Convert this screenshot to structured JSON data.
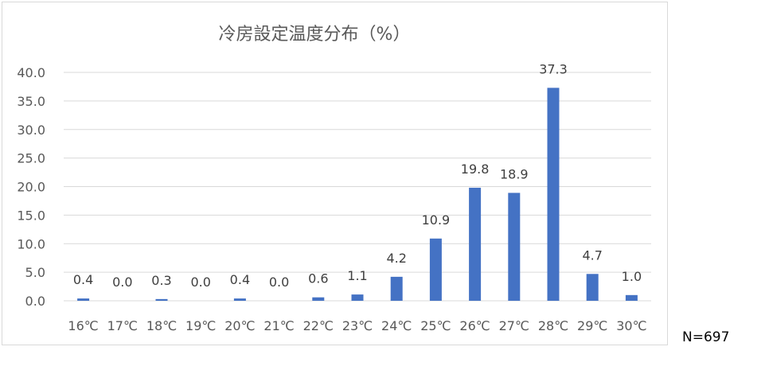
{
  "chart_data": {
    "type": "bar",
    "title": "冷房設定温度分布（%）",
    "xlabel": "",
    "ylabel": "",
    "categories": [
      "16℃",
      "17℃",
      "18℃",
      "19℃",
      "20℃",
      "21℃",
      "22℃",
      "23℃",
      "24℃",
      "25℃",
      "26℃",
      "27℃",
      "28℃",
      "29℃",
      "30℃"
    ],
    "values": [
      0.4,
      0.0,
      0.3,
      0.0,
      0.4,
      0.0,
      0.6,
      1.1,
      4.2,
      10.9,
      19.8,
      18.9,
      37.3,
      4.7,
      1.0
    ],
    "data_labels": [
      "0.4",
      "0.0",
      "0.3",
      "0.0",
      "0.4",
      "0.0",
      "0.6",
      "1.1",
      "4.2",
      "10.9",
      "19.8",
      "18.9",
      "37.3",
      "4.7",
      "1.0"
    ],
    "ylim": [
      0,
      40
    ],
    "y_ticks": [
      "0.0",
      "5.0",
      "10.0",
      "15.0",
      "20.0",
      "25.0",
      "30.0",
      "35.0",
      "40.0"
    ],
    "grid": true,
    "legend": "none",
    "bar_color": "#4472c4"
  },
  "note": "N=697"
}
